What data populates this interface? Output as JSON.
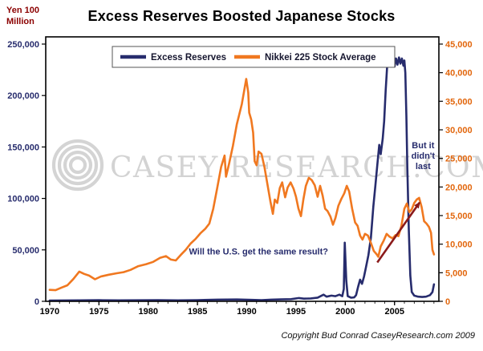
{
  "title": "Excess Reserves Boosted Japanese Stocks",
  "watermark": {
    "text": "CASEY RESEARCH.COM"
  },
  "copyright": "Copyright Bud Conrad CaseyResearch.com 2009",
  "chart_data": {
    "type": "line",
    "title": "Excess Reserves Boosted Japanese Stocks",
    "x_axis": {
      "min": 1969.6,
      "max": 2009.5,
      "tick_years": [
        1970,
        1975,
        1980,
        1985,
        1990,
        1995,
        2000,
        2005
      ],
      "tick_color": "#000000"
    },
    "left_axis": {
      "label": "Yen 100 Million",
      "label_lines": [
        "Yen 100",
        "Million"
      ],
      "min": 0,
      "max": 250000,
      "tick_step": 50000,
      "tick_color": "#272C6D"
    },
    "right_axis": {
      "min": 0,
      "max": 45000,
      "tick_step": 5000,
      "tick_color": "#E2660C"
    },
    "legend_position": "top-center",
    "grid": false,
    "series": [
      {
        "name": "Excess Reserves",
        "axis": "left",
        "color": "#272C6D",
        "points": [
          [
            1970,
            700
          ],
          [
            1973,
            900
          ],
          [
            1975,
            1100
          ],
          [
            1977,
            900
          ],
          [
            1979,
            1000
          ],
          [
            1981,
            1100
          ],
          [
            1983,
            900
          ],
          [
            1985,
            1200
          ],
          [
            1987,
            1600
          ],
          [
            1989,
            1800
          ],
          [
            1990.5,
            1400
          ],
          [
            1991.5,
            1200
          ],
          [
            1992.5,
            1600
          ],
          [
            1993.5,
            1900
          ],
          [
            1994.5,
            2100
          ],
          [
            1995.3,
            3200
          ],
          [
            1995.8,
            2600
          ],
          [
            1996.5,
            2800
          ],
          [
            1997.2,
            3600
          ],
          [
            1997.8,
            6500
          ],
          [
            1998.1,
            4500
          ],
          [
            1998.6,
            5500
          ],
          [
            1999,
            5000
          ],
          [
            1999.4,
            6500
          ],
          [
            1999.7,
            5000
          ],
          [
            1999.85,
            12000
          ],
          [
            1999.95,
            57000
          ],
          [
            2000.1,
            20000
          ],
          [
            2000.25,
            5000
          ],
          [
            2000.6,
            3500
          ],
          [
            2000.9,
            3800
          ],
          [
            2001.1,
            6000
          ],
          [
            2001.3,
            14000
          ],
          [
            2001.5,
            21000
          ],
          [
            2001.7,
            17000
          ],
          [
            2001.9,
            24000
          ],
          [
            2002.1,
            33000
          ],
          [
            2002.35,
            45000
          ],
          [
            2002.6,
            62000
          ],
          [
            2002.85,
            92000
          ],
          [
            2003.05,
            112000
          ],
          [
            2003.25,
            132000
          ],
          [
            2003.45,
            152000
          ],
          [
            2003.6,
            143000
          ],
          [
            2003.8,
            158000
          ],
          [
            2003.95,
            175000
          ],
          [
            2004.1,
            205000
          ],
          [
            2004.25,
            228000
          ],
          [
            2004.4,
            236000
          ],
          [
            2004.55,
            230000
          ],
          [
            2004.7,
            237000
          ],
          [
            2004.85,
            231000
          ],
          [
            2005,
            228000
          ],
          [
            2005.15,
            236000
          ],
          [
            2005.3,
            230000
          ],
          [
            2005.45,
            237000
          ],
          [
            2005.6,
            231000
          ],
          [
            2005.75,
            236000
          ],
          [
            2005.9,
            229000
          ],
          [
            2006,
            234000
          ],
          [
            2006.1,
            222000
          ],
          [
            2006.2,
            180000
          ],
          [
            2006.3,
            130000
          ],
          [
            2006.45,
            70000
          ],
          [
            2006.6,
            25000
          ],
          [
            2006.75,
            9000
          ],
          [
            2007,
            5500
          ],
          [
            2007.4,
            4500
          ],
          [
            2007.8,
            4200
          ],
          [
            2008.2,
            4500
          ],
          [
            2008.6,
            6000
          ],
          [
            2008.85,
            9000
          ],
          [
            2009,
            16500
          ]
        ]
      },
      {
        "name": "Nikkei 225 Stock Average",
        "axis": "right",
        "color": "#F07820",
        "points": [
          [
            1970,
            2000
          ],
          [
            1970.6,
            1950
          ],
          [
            1971.2,
            2400
          ],
          [
            1971.8,
            2800
          ],
          [
            1972.4,
            3900
          ],
          [
            1973,
            5200
          ],
          [
            1973.5,
            4800
          ],
          [
            1974,
            4500
          ],
          [
            1974.6,
            3850
          ],
          [
            1975.2,
            4350
          ],
          [
            1976,
            4650
          ],
          [
            1976.8,
            4900
          ],
          [
            1977.5,
            5100
          ],
          [
            1978.2,
            5500
          ],
          [
            1979,
            6150
          ],
          [
            1979.8,
            6500
          ],
          [
            1980.5,
            6900
          ],
          [
            1981.2,
            7600
          ],
          [
            1981.8,
            7900
          ],
          [
            1982.3,
            7300
          ],
          [
            1982.8,
            7150
          ],
          [
            1983.3,
            8100
          ],
          [
            1983.8,
            9000
          ],
          [
            1984.3,
            10100
          ],
          [
            1984.8,
            10900
          ],
          [
            1985.3,
            11900
          ],
          [
            1985.8,
            12700
          ],
          [
            1986.2,
            13600
          ],
          [
            1986.6,
            16200
          ],
          [
            1987,
            19800
          ],
          [
            1987.4,
            23500
          ],
          [
            1987.75,
            25500
          ],
          [
            1987.9,
            21800
          ],
          [
            1988.2,
            24000
          ],
          [
            1988.6,
            27200
          ],
          [
            1989,
            31000
          ],
          [
            1989.5,
            34500
          ],
          [
            1989.95,
            38900
          ],
          [
            1990.15,
            36500
          ],
          [
            1990.25,
            33000
          ],
          [
            1990.45,
            31800
          ],
          [
            1990.65,
            29500
          ],
          [
            1990.8,
            24500
          ],
          [
            1991,
            23800
          ],
          [
            1991.2,
            26200
          ],
          [
            1991.5,
            25800
          ],
          [
            1991.8,
            23500
          ],
          [
            1992.1,
            20500
          ],
          [
            1992.4,
            17500
          ],
          [
            1992.65,
            15300
          ],
          [
            1992.85,
            17800
          ],
          [
            1993.1,
            17200
          ],
          [
            1993.35,
            19800
          ],
          [
            1993.6,
            20800
          ],
          [
            1993.9,
            18200
          ],
          [
            1994.15,
            19900
          ],
          [
            1994.45,
            20800
          ],
          [
            1994.75,
            19700
          ],
          [
            1995,
            18300
          ],
          [
            1995.25,
            16200
          ],
          [
            1995.5,
            14900
          ],
          [
            1995.75,
            17800
          ],
          [
            1996,
            20200
          ],
          [
            1996.3,
            21600
          ],
          [
            1996.6,
            21200
          ],
          [
            1996.9,
            20300
          ],
          [
            1997.2,
            18300
          ],
          [
            1997.45,
            20200
          ],
          [
            1997.7,
            18500
          ],
          [
            1997.95,
            16200
          ],
          [
            1998.2,
            15800
          ],
          [
            1998.5,
            14800
          ],
          [
            1998.75,
            13400
          ],
          [
            1999,
            14600
          ],
          [
            1999.3,
            16700
          ],
          [
            1999.6,
            17900
          ],
          [
            1999.9,
            18900
          ],
          [
            2000.15,
            20200
          ],
          [
            2000.4,
            19200
          ],
          [
            2000.7,
            16200
          ],
          [
            2001,
            13800
          ],
          [
            2001.25,
            13200
          ],
          [
            2001.5,
            11500
          ],
          [
            2001.75,
            10800
          ],
          [
            2002,
            11800
          ],
          [
            2002.3,
            11500
          ],
          [
            2002.6,
            10200
          ],
          [
            2002.9,
            8800
          ],
          [
            2003.2,
            8200
          ],
          [
            2003.35,
            7800
          ],
          [
            2003.6,
            9600
          ],
          [
            2003.9,
            10600
          ],
          [
            2004.2,
            11800
          ],
          [
            2004.5,
            11300
          ],
          [
            2004.8,
            11000
          ],
          [
            2005.1,
            11600
          ],
          [
            2005.4,
            11400
          ],
          [
            2005.7,
            13200
          ],
          [
            2006,
            16200
          ],
          [
            2006.25,
            17100
          ],
          [
            2006.5,
            15600
          ],
          [
            2006.75,
            16100
          ],
          [
            2007,
            17200
          ],
          [
            2007.25,
            17800
          ],
          [
            2007.5,
            18100
          ],
          [
            2007.75,
            16500
          ],
          [
            2008,
            14000
          ],
          [
            2008.25,
            13600
          ],
          [
            2008.5,
            13000
          ],
          [
            2008.7,
            12000
          ],
          [
            2008.85,
            9000
          ],
          [
            2009,
            8200
          ]
        ]
      }
    ],
    "annotations": [
      {
        "id": "us-question",
        "lines": [
          "Will the U.S. get the same result?"
        ],
        "x": 1991.2,
        "value": 8200,
        "axis": "right",
        "color": "#272C6D"
      },
      {
        "id": "didnt-last",
        "lines": [
          "But it",
          "didn't",
          "last"
        ],
        "x": 2007.9,
        "value": 26800,
        "axis": "right",
        "color": "#272C6D"
      }
    ],
    "arrow": {
      "from": {
        "x": 2003.25,
        "value": 6800
      },
      "to": {
        "x": 2007.55,
        "value": 17300
      },
      "axis": "right",
      "color": "#8B1A1A"
    }
  }
}
